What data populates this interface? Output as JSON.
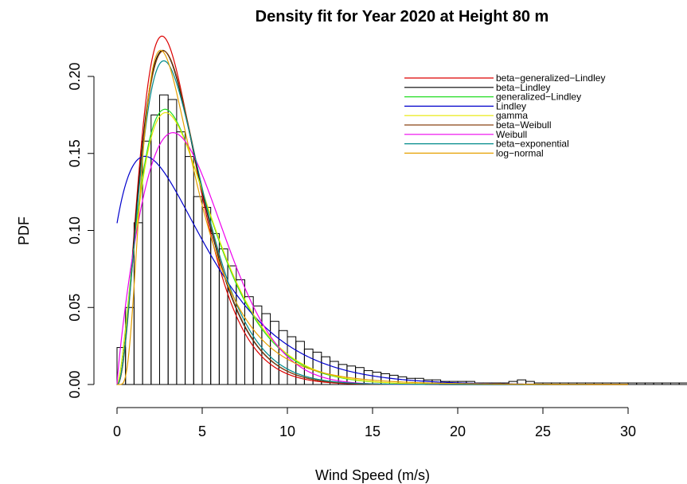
{
  "chart_data": {
    "type": "histogram",
    "title": "Density fit for Year 2020 at Height 80 m",
    "xlabel": "Wind Speed (m/s)",
    "ylabel": "PDF",
    "xlim": [
      0,
      33
    ],
    "ylim": [
      0,
      0.2
    ],
    "x_ticks": [
      0,
      5,
      10,
      15,
      20,
      25,
      30
    ],
    "x_tick_labels": [
      "0",
      "5",
      "10",
      "15",
      "20",
      "25",
      "30"
    ],
    "y_ticks": [
      0,
      0.05,
      0.1,
      0.15,
      0.2
    ],
    "y_tick_labels": [
      "0.00",
      "0.05",
      "0.10",
      "0.15",
      "0.20"
    ],
    "legend_position": "top-right",
    "histogram": {
      "bin_width": 0.5,
      "bin_start": 0,
      "densities": [
        0.024,
        0.05,
        0.105,
        0.158,
        0.175,
        0.188,
        0.185,
        0.164,
        0.148,
        0.122,
        0.115,
        0.098,
        0.088,
        0.077,
        0.068,
        0.057,
        0.051,
        0.046,
        0.041,
        0.035,
        0.031,
        0.028,
        0.023,
        0.021,
        0.018,
        0.015,
        0.013,
        0.012,
        0.011,
        0.009,
        0.008,
        0.007,
        0.006,
        0.005,
        0.004,
        0.004,
        0.003,
        0.003,
        0.002,
        0.002,
        0.002,
        0.002,
        0.001,
        0.001,
        0.001,
        0.001,
        0.002,
        0.003,
        0.002,
        0.001,
        0.001,
        0.001,
        0.001,
        0.001,
        0.001,
        0.001,
        0.001,
        0.001,
        0.001,
        0.001,
        0.001,
        0.001,
        0.001,
        0.001,
        0.001,
        0.001,
        0.001,
        0.001,
        0.001,
        0.001
      ]
    },
    "series": [
      {
        "name": "beta−generalized−Lindley",
        "color": "#dd0000",
        "fn": "gamma",
        "shape": 3.4,
        "scale": 1.1
      },
      {
        "name": "beta−Lindley",
        "color": "#000000",
        "fn": "gamma",
        "shape": 3.3,
        "scale": 1.17
      },
      {
        "name": "generalized−Lindley",
        "color": "#22dd22",
        "fn": "gamma",
        "shape": 2.75,
        "scale": 1.61
      },
      {
        "name": "Lindley",
        "color": "#0000cc",
        "fn": "lindley",
        "theta": 0.38
      },
      {
        "name": "gamma",
        "color": "#e8e800",
        "fn": "gamma",
        "shape": 2.75,
        "scale": 1.63
      },
      {
        "name": "beta−Weibull",
        "color": "#8b4513",
        "fn": "gamma",
        "shape": 3.35,
        "scale": 1.16
      },
      {
        "name": "Weibull",
        "color": "#ee00ee",
        "fn": "weibull",
        "k": 1.85,
        "lambda": 5.0
      },
      {
        "name": "beta−exponential",
        "color": "#008b8b",
        "fn": "gamma",
        "shape": 3.25,
        "scale": 1.22
      },
      {
        "name": "log−normal",
        "color": "#e6a000",
        "fn": "lognormal",
        "mu": 1.3,
        "sigma": 0.6
      }
    ]
  }
}
